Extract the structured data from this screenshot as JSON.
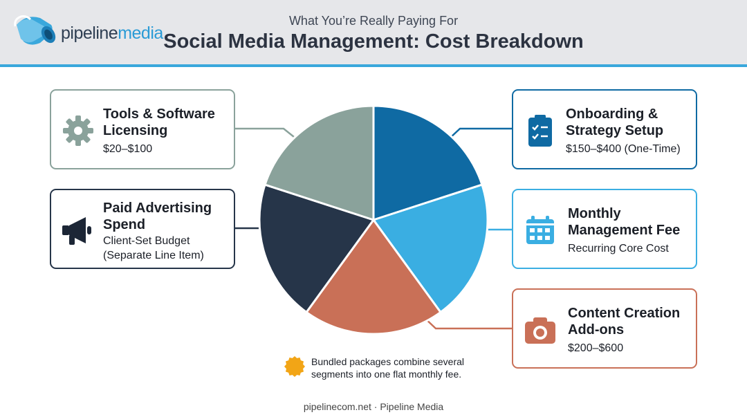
{
  "header": {
    "brand_prefix": "pipeline",
    "brand_suffix": "media",
    "subtitle": "What You’re Really Paying For",
    "title": "Social Media Management: Cost Breakdown"
  },
  "segments": [
    {
      "id": "onboarding",
      "title_line1": "Onboarding &",
      "title_line2": "Strategy Setup",
      "desc_line1": "$150–$400 (One-Time)",
      "desc_line2": "",
      "color": "#0f6aa3",
      "icon": "clipboard-checklist-icon"
    },
    {
      "id": "monthly",
      "title_line1": "Monthly",
      "title_line2": "Management Fee",
      "desc_line1": "Recurring Core Cost",
      "desc_line2": "",
      "color": "#3aaee2",
      "icon": "calendar-icon"
    },
    {
      "id": "content",
      "title_line1": "Content Creation",
      "title_line2": "Add-ons",
      "desc_line1": "$200–$600",
      "desc_line2": "",
      "color": "#c97057",
      "icon": "camera-icon"
    },
    {
      "id": "ads",
      "title_line1": "Paid Advertising",
      "title_line2": "Spend",
      "desc_line1": "Client-Set Budget",
      "desc_line2": "(Separate Line Item)",
      "color": "#263549",
      "icon": "megaphone-icon"
    },
    {
      "id": "tools",
      "title_line1": "Tools & Software",
      "title_line2": "Licensing",
      "desc_line1": "$20–$100",
      "desc_line2": "",
      "color": "#8aa29b",
      "icon": "gear-icon"
    }
  ],
  "note": {
    "line1": "Bundled packages combine several",
    "line2": "segments into one flat monthly fee.",
    "color": "#f2a516"
  },
  "footer": "pipelinecom.net · Pipeline Media"
}
